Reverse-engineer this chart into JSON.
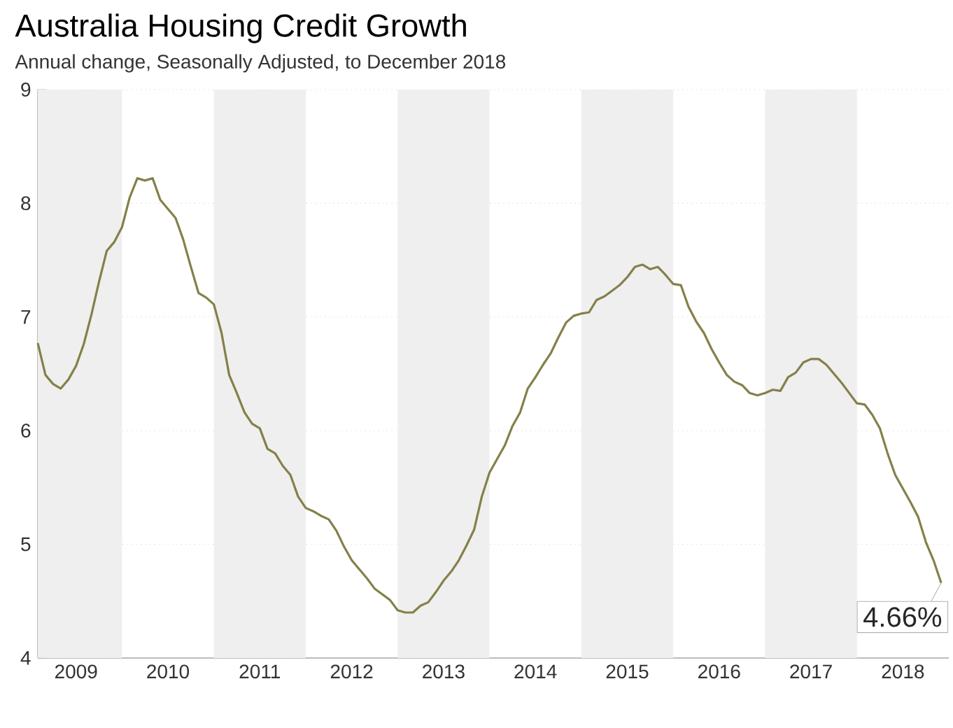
{
  "chart_data": {
    "type": "line",
    "title": "Australia Housing Credit Growth",
    "subtitle": "Annual change, Seasonally Adjusted, to December 2018",
    "x": [
      "2009-02",
      "2009-03",
      "2009-04",
      "2009-05",
      "2009-06",
      "2009-07",
      "2009-08",
      "2009-09",
      "2009-10",
      "2009-11",
      "2009-12",
      "2010-01",
      "2010-02",
      "2010-03",
      "2010-04",
      "2010-05",
      "2010-06",
      "2010-07",
      "2010-08",
      "2010-09",
      "2010-10",
      "2010-11",
      "2010-12",
      "2011-01",
      "2011-02",
      "2011-03",
      "2011-04",
      "2011-05",
      "2011-06",
      "2011-07",
      "2011-08",
      "2011-09",
      "2011-10",
      "2011-11",
      "2011-12",
      "2012-01",
      "2012-02",
      "2012-03",
      "2012-04",
      "2012-05",
      "2012-06",
      "2012-07",
      "2012-08",
      "2012-09",
      "2012-10",
      "2012-11",
      "2012-12",
      "2013-01",
      "2013-02",
      "2013-03",
      "2013-04",
      "2013-05",
      "2013-06",
      "2013-07",
      "2013-08",
      "2013-09",
      "2013-10",
      "2013-11",
      "2013-12",
      "2014-01",
      "2014-02",
      "2014-03",
      "2014-04",
      "2014-05",
      "2014-06",
      "2014-07",
      "2014-08",
      "2014-09",
      "2014-10",
      "2014-11",
      "2014-12",
      "2015-01",
      "2015-02",
      "2015-03",
      "2015-04",
      "2015-05",
      "2015-06",
      "2015-07",
      "2015-08",
      "2015-09",
      "2015-10",
      "2015-11",
      "2015-12",
      "2016-01",
      "2016-02",
      "2016-03",
      "2016-04",
      "2016-05",
      "2016-06",
      "2016-07",
      "2016-08",
      "2016-09",
      "2016-10",
      "2016-11",
      "2016-12",
      "2017-01",
      "2017-02",
      "2017-03",
      "2017-04",
      "2017-05",
      "2017-06",
      "2017-07",
      "2017-08",
      "2017-09",
      "2017-10",
      "2017-11",
      "2017-12",
      "2018-01",
      "2018-02",
      "2018-03",
      "2018-04",
      "2018-05",
      "2018-06",
      "2018-07",
      "2018-08",
      "2018-09",
      "2018-10",
      "2018-11",
      "2018-12"
    ],
    "series": [
      {
        "color": "#85804a",
        "values": [
          6.77,
          6.49,
          6.41,
          6.37,
          6.45,
          6.57,
          6.76,
          7.02,
          7.31,
          7.58,
          7.66,
          7.79,
          8.05,
          8.22,
          8.2,
          8.22,
          8.03,
          7.95,
          7.87,
          7.68,
          7.44,
          7.21,
          7.17,
          7.11,
          6.86,
          6.49,
          6.33,
          6.16,
          6.06,
          6.02,
          5.84,
          5.8,
          5.69,
          5.61,
          5.42,
          5.32,
          5.29,
          5.25,
          5.22,
          5.12,
          4.98,
          4.86,
          4.78,
          4.7,
          4.61,
          4.56,
          4.51,
          4.42,
          4.4,
          4.4,
          4.46,
          4.49,
          4.58,
          4.68,
          4.76,
          4.86,
          4.99,
          5.13,
          5.42,
          5.63,
          5.75,
          5.87,
          6.04,
          6.16,
          6.37,
          6.47,
          6.58,
          6.68,
          6.82,
          6.95,
          7.01,
          7.03,
          7.04,
          7.15,
          7.18,
          7.23,
          7.28,
          7.35,
          7.44,
          7.46,
          7.42,
          7.44,
          7.37,
          7.29,
          7.28,
          7.09,
          6.96,
          6.86,
          6.72,
          6.6,
          6.49,
          6.43,
          6.4,
          6.33,
          6.31,
          6.33,
          6.36,
          6.35,
          6.47,
          6.51,
          6.6,
          6.63,
          6.63,
          6.58,
          6.5,
          6.42,
          6.33,
          6.24,
          6.23,
          6.14,
          6.02,
          5.8,
          5.61,
          5.49,
          5.37,
          5.24,
          5.02,
          4.86,
          4.66
        ]
      }
    ],
    "xlim": [
      "2009-02",
      "2019-01"
    ],
    "xticks": [
      {
        "value": "2009-07",
        "label": "2009"
      },
      {
        "value": "2010-07",
        "label": "2010"
      },
      {
        "value": "2011-07",
        "label": "2011"
      },
      {
        "value": "2012-07",
        "label": "2012"
      },
      {
        "value": "2013-07",
        "label": "2013"
      },
      {
        "value": "2014-07",
        "label": "2014"
      },
      {
        "value": "2015-07",
        "label": "2015"
      },
      {
        "value": "2016-07",
        "label": "2016"
      },
      {
        "value": "2017-07",
        "label": "2017"
      },
      {
        "value": "2018-07",
        "label": "2018"
      }
    ],
    "ylim": [
      4,
      9
    ],
    "yticks": [
      4,
      5,
      6,
      7,
      8,
      9
    ],
    "grid": "y",
    "bands": [
      {
        "axis": "x",
        "from": "2009-02",
        "to": "2010-01",
        "color": "#efefef"
      },
      {
        "axis": "x",
        "from": "2011-01",
        "to": "2012-01",
        "color": "#efefef"
      },
      {
        "axis": "x",
        "from": "2013-01",
        "to": "2014-01",
        "color": "#efefef"
      },
      {
        "axis": "x",
        "from": "2015-01",
        "to": "2016-01",
        "color": "#efefef"
      },
      {
        "axis": "x",
        "from": "2017-01",
        "to": "2018-01",
        "color": "#efefef"
      }
    ],
    "annotations": [
      {
        "text": "4.66%",
        "x": "2018-12",
        "y": 4.66
      }
    ]
  }
}
